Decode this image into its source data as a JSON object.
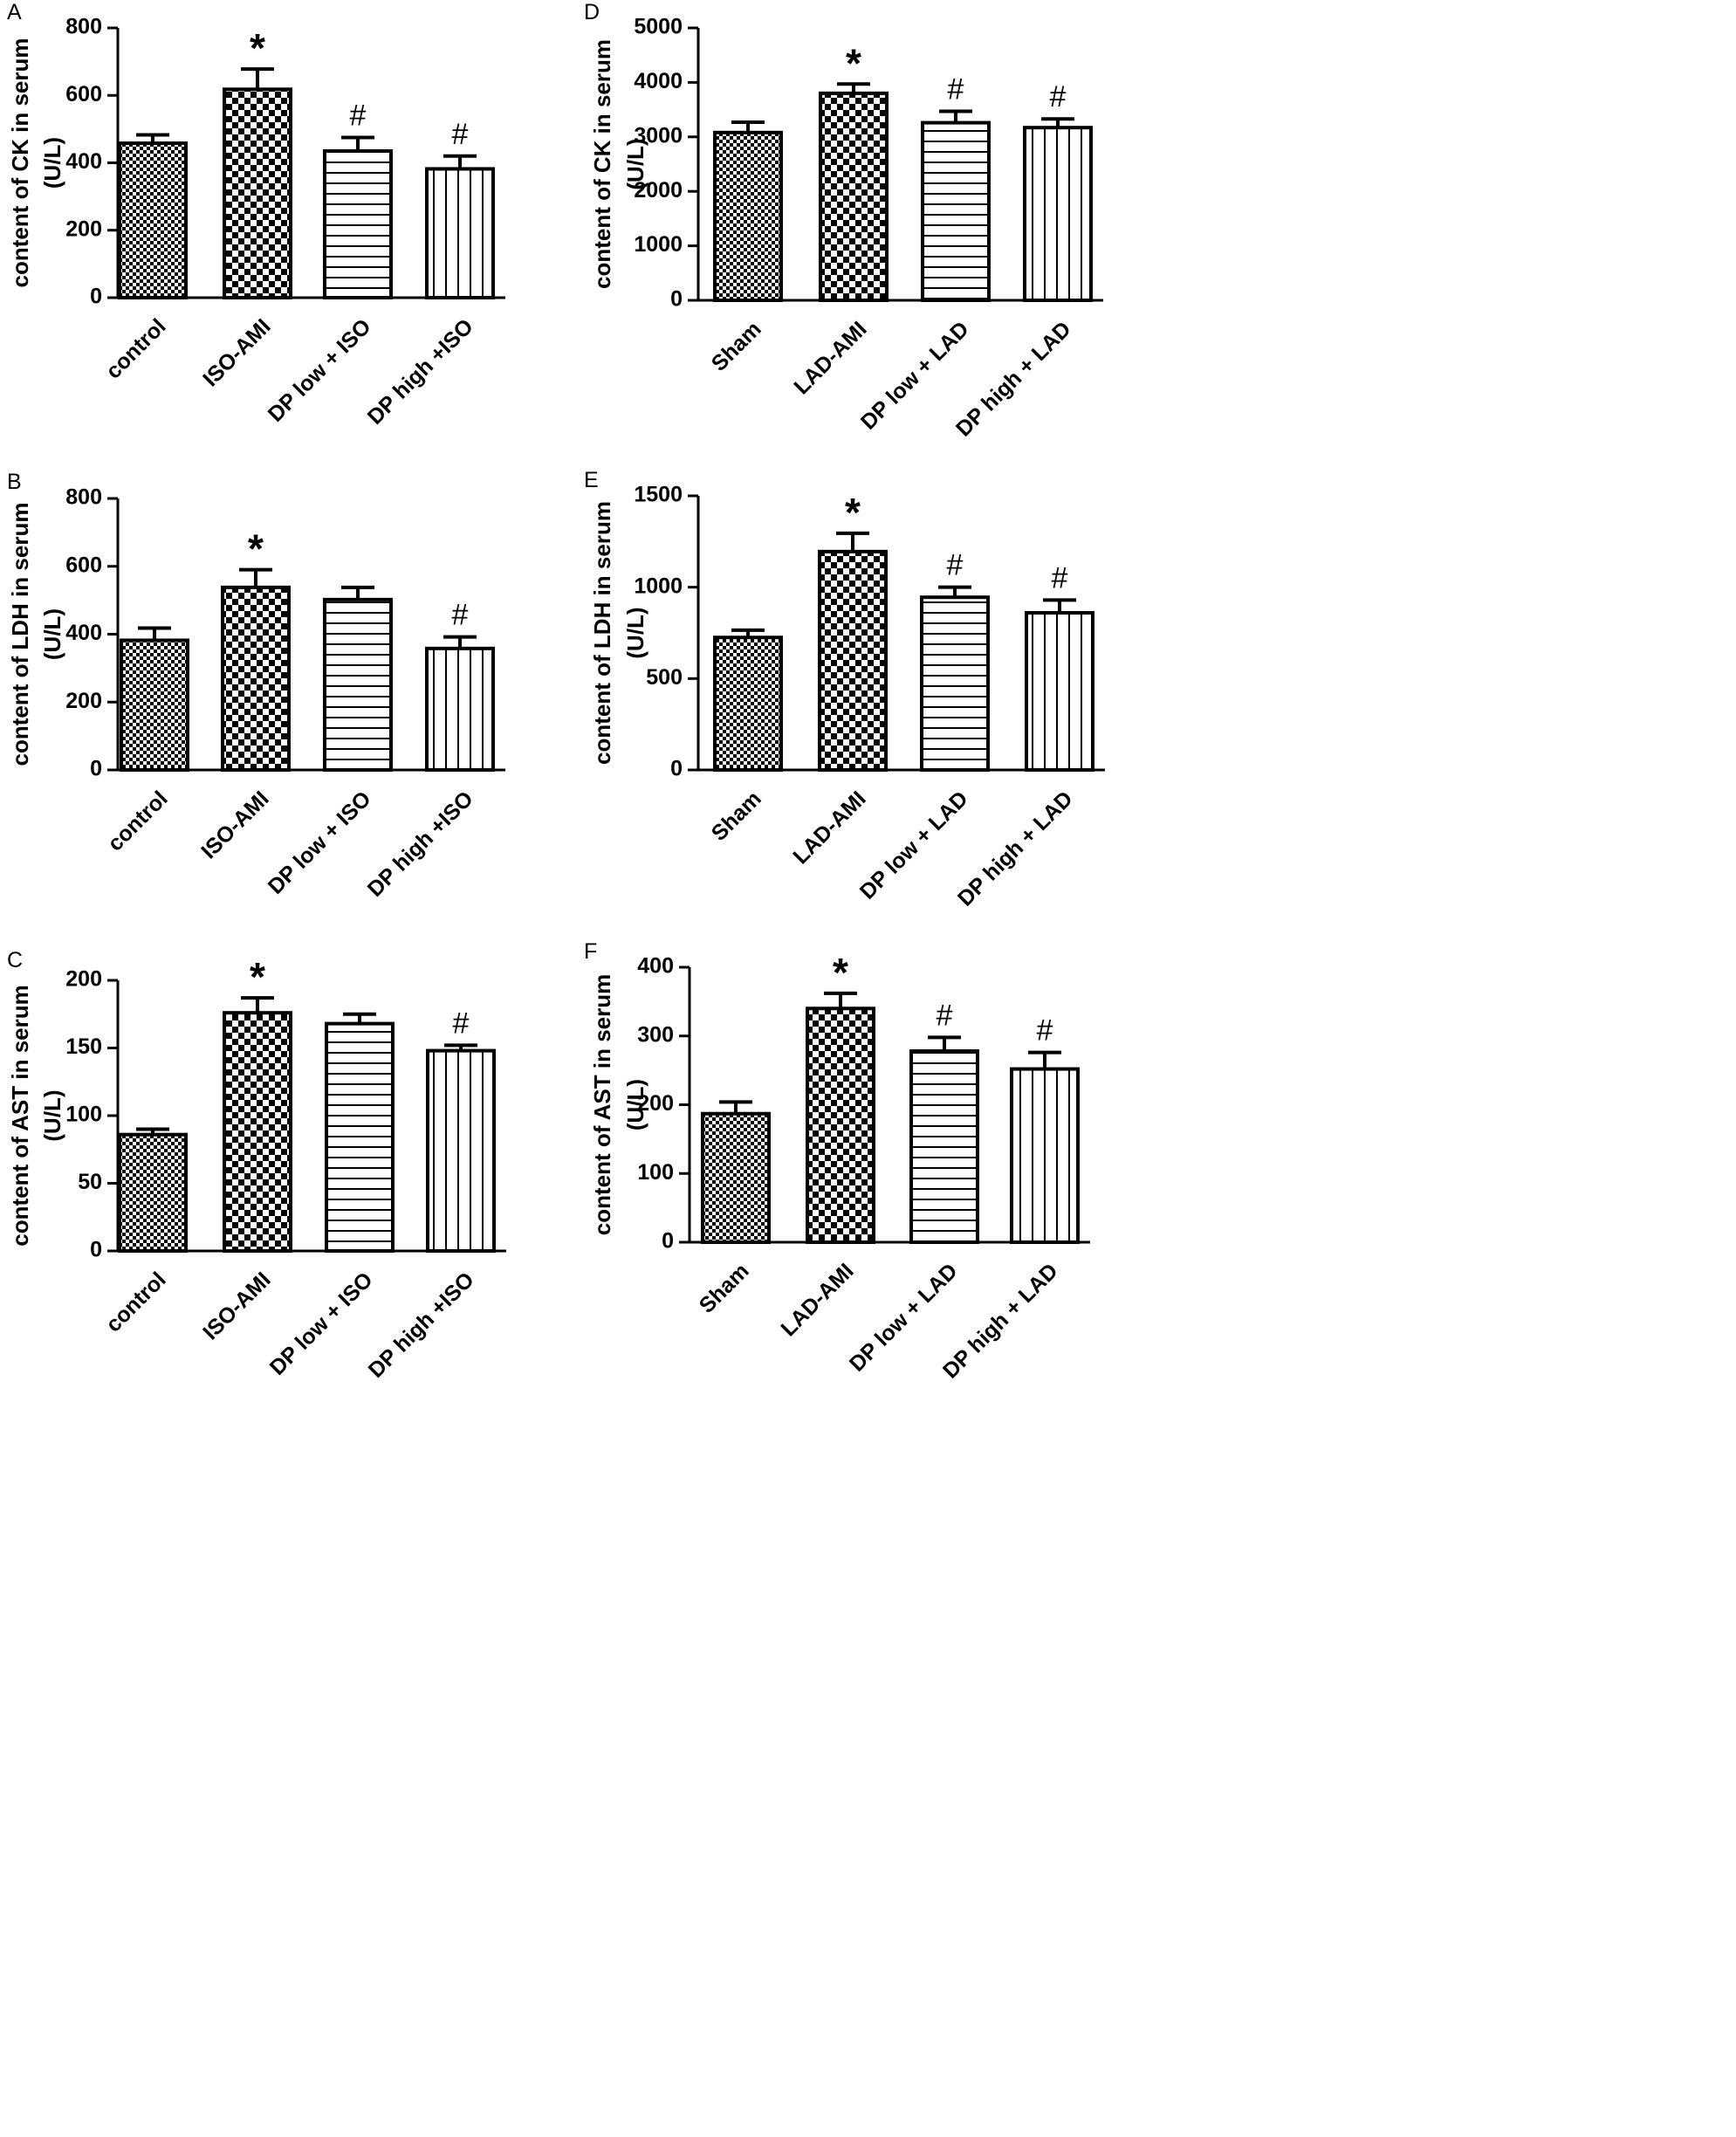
{
  "figure": {
    "colors": {
      "ink": "#000000",
      "background": "#ffffff"
    },
    "icons": {
      "sig_vs_control": "asterisk",
      "sig_vs_model": "hash"
    }
  },
  "chart_data": [
    {
      "panel": "A",
      "type": "bar",
      "title": "",
      "xlabel": "",
      "ylabel": "content of CK in serum",
      "yunit": "(U/L)",
      "categories": [
        "control",
        "ISO-AMI",
        "DP low + ISO",
        "DP high +ISO"
      ],
      "values": [
        458,
        618,
        435,
        382
      ],
      "errors": [
        25,
        60,
        40,
        38
      ],
      "significance": [
        "",
        "*",
        "#",
        "#"
      ],
      "patterns": [
        "fine-check",
        "coarse-check",
        "horizontal-lines",
        "vertical-lines"
      ],
      "ylim": [
        0,
        800
      ],
      "yticks": [
        0,
        200,
        400,
        600,
        800
      ],
      "ytick_labels": [
        "0",
        "200",
        "400",
        "600",
        "800"
      ],
      "grid": false
    },
    {
      "panel": "B",
      "type": "bar",
      "title": "",
      "xlabel": "",
      "ylabel": "content of LDH in serum",
      "yunit": "(U/L)",
      "categories": [
        "control",
        "ISO-AMI",
        "DP low + ISO",
        "DP high +ISO"
      ],
      "values": [
        382,
        538,
        502,
        358
      ],
      "errors": [
        36,
        52,
        36,
        34
      ],
      "significance": [
        "",
        "*",
        "",
        "#"
      ],
      "patterns": [
        "fine-check",
        "coarse-check",
        "horizontal-lines",
        "vertical-lines"
      ],
      "ylim": [
        0,
        800
      ],
      "yticks": [
        0,
        200,
        400,
        600,
        800
      ],
      "ytick_labels": [
        "0",
        "200",
        "400",
        "600",
        "800"
      ],
      "grid": false
    },
    {
      "panel": "C",
      "type": "bar",
      "title": "",
      "xlabel": "",
      "ylabel": "content of AST in serum",
      "yunit": "(U/L)",
      "categories": [
        "control",
        "ISO-AMI",
        "DP low + ISO",
        "DP high +ISO"
      ],
      "values": [
        86,
        176,
        168,
        148
      ],
      "errors": [
        4,
        11,
        7,
        4
      ],
      "significance": [
        "",
        "*",
        "",
        "#"
      ],
      "patterns": [
        "fine-check",
        "coarse-check",
        "horizontal-lines",
        "vertical-lines"
      ],
      "ylim": [
        0,
        200
      ],
      "yticks": [
        0,
        50,
        100,
        150,
        200
      ],
      "ytick_labels": [
        "0",
        "50",
        "100",
        "150",
        "200"
      ],
      "grid": false
    },
    {
      "panel": "D",
      "type": "bar",
      "title": "",
      "xlabel": "",
      "ylabel": "content of CK in serum",
      "yunit": "(U/L)",
      "categories": [
        "Sham",
        "LAD-AMI",
        "DP low + LAD",
        "DP high + LAD"
      ],
      "values": [
        3080,
        3800,
        3260,
        3170
      ],
      "errors": [
        190,
        170,
        210,
        160
      ],
      "significance": [
        "",
        "*",
        "#",
        "#"
      ],
      "patterns": [
        "fine-check",
        "coarse-check",
        "horizontal-lines",
        "vertical-lines"
      ],
      "ylim": [
        0,
        5000
      ],
      "yticks": [
        0,
        1000,
        2000,
        3000,
        4000,
        5000
      ],
      "ytick_labels": [
        "0",
        "1000",
        "2000",
        "3000",
        "4000",
        "5000"
      ],
      "grid": false
    },
    {
      "panel": "E",
      "type": "bar",
      "title": "",
      "xlabel": "",
      "ylabel": "content of LDH in serum",
      "yunit": "(U/L)",
      "categories": [
        "Sham",
        "LAD-AMI",
        "DP low + LAD",
        "DP high + LAD"
      ],
      "values": [
        725,
        1195,
        945,
        860
      ],
      "errors": [
        40,
        100,
        55,
        70
      ],
      "significance": [
        "",
        "*",
        "#",
        "#"
      ],
      "patterns": [
        "fine-check",
        "coarse-check",
        "horizontal-lines",
        "vertical-lines"
      ],
      "ylim": [
        0,
        1500
      ],
      "yticks": [
        0,
        500,
        1000,
        1500
      ],
      "ytick_labels": [
        "0",
        "500",
        "1000",
        "1500"
      ],
      "grid": false
    },
    {
      "panel": "F",
      "type": "bar",
      "title": "",
      "xlabel": "",
      "ylabel": "content of AST in serum",
      "yunit": "(U/L)",
      "categories": [
        "Sham",
        "LAD-AMI",
        "DP low + LAD",
        "DP high + LAD"
      ],
      "values": [
        187,
        340,
        278,
        252
      ],
      "errors": [
        17,
        22,
        20,
        24
      ],
      "significance": [
        "",
        "*",
        "#",
        "#"
      ],
      "patterns": [
        "fine-check",
        "coarse-check",
        "horizontal-lines",
        "vertical-lines"
      ],
      "ylim": [
        0,
        400
      ],
      "yticks": [
        0,
        100,
        200,
        300,
        400
      ],
      "ytick_labels": [
        "0",
        "100",
        "200",
        "300",
        "400"
      ],
      "grid": false
    }
  ]
}
